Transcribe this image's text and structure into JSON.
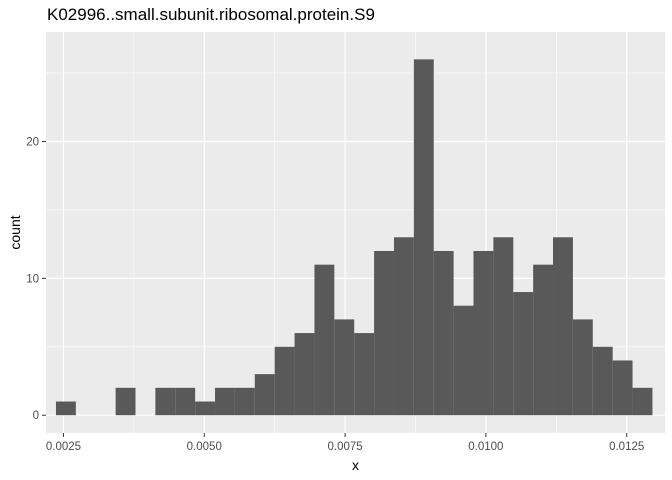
{
  "chart_data": {
    "type": "bar",
    "title": "K02996..small.subunit.ribosomal.protein.S9",
    "xlabel": "x",
    "ylabel": "count",
    "xlim": [
      0.00219,
      0.01318
    ],
    "ylim": [
      -1.3,
      28.0
    ],
    "x_ticks": [
      0.0025,
      0.005,
      0.0075,
      0.01,
      0.0125
    ],
    "x_tick_labels": [
      "0.0025",
      "0.0050",
      "0.0075",
      "0.0100",
      "0.0125"
    ],
    "y_ticks": [
      0,
      10,
      20
    ],
    "y_tick_labels": [
      "0",
      "10",
      "20"
    ],
    "grid": true,
    "bin_width": 0.000353,
    "bins_start": [
      0.002367,
      0.00272,
      0.003073,
      0.003426,
      0.003779,
      0.004132,
      0.004485,
      0.004838,
      0.005191,
      0.005544,
      0.005897,
      0.00625,
      0.006603,
      0.006956,
      0.007309,
      0.007662,
      0.008015,
      0.008368,
      0.008721,
      0.009074,
      0.009427,
      0.00978,
      0.010133,
      0.010486,
      0.010839,
      0.011192,
      0.011545,
      0.011898,
      0.012251,
      0.012604
    ],
    "values": [
      1,
      0,
      0,
      2,
      0,
      2,
      2,
      1,
      2,
      2,
      3,
      5,
      6,
      11,
      7,
      6,
      12,
      13,
      26,
      12,
      8,
      12,
      13,
      9,
      11,
      13,
      7,
      5,
      4,
      2
    ],
    "bar_color": "#595959",
    "panel_color": "#ebebeb",
    "grid_color": "#ffffff"
  }
}
